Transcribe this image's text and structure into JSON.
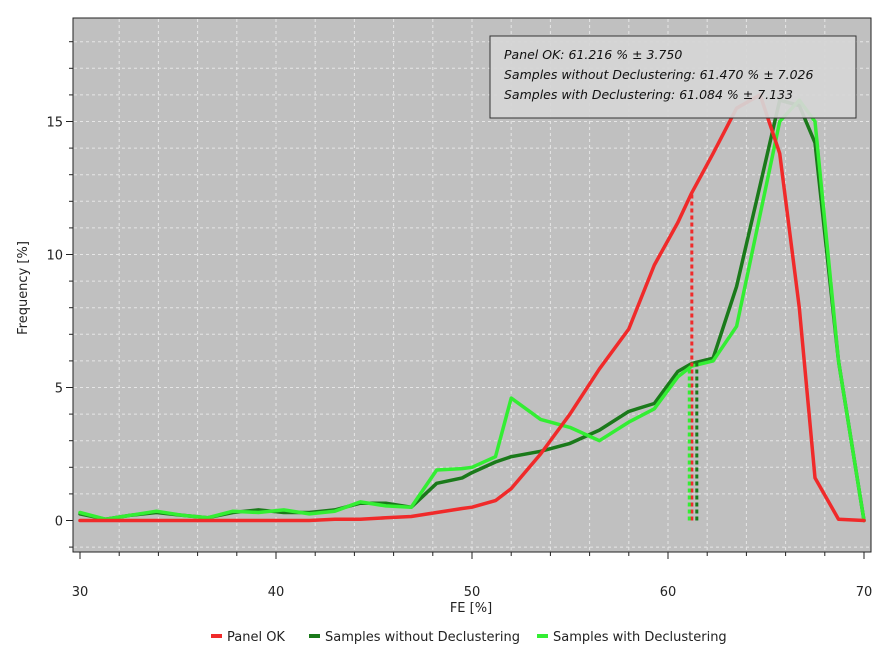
{
  "chart_data": {
    "type": "line",
    "xlabel": "FE [%]",
    "ylabel": "Frequency [%]",
    "xlim": [
      30,
      70
    ],
    "ylim": [
      -1.2,
      18.6
    ],
    "x_ticks": [
      30,
      40,
      50,
      60,
      70
    ],
    "y_ticks": [
      0,
      5,
      10,
      15
    ],
    "grid": true,
    "legend_position": "bottom",
    "colors": {
      "plot_bg": "#c0c0c0",
      "grid": "#e6e6e6",
      "panel_ok": "#f02a2a",
      "without_declustering": "#1a7a1a",
      "with_declustering": "#33ee33"
    },
    "series": [
      {
        "name": "Panel OK",
        "color": "#f02a2a",
        "x": [
          30.0,
          31.3,
          32.6,
          33.9,
          35.2,
          36.5,
          37.8,
          39.1,
          40.4,
          41.7,
          43.0,
          44.3,
          45.6,
          46.9,
          48.2,
          49.5,
          50.0,
          51.2,
          52.0,
          53.5,
          55.0,
          56.5,
          58.0,
          59.3,
          60.5,
          61.2,
          62.3,
          63.5,
          64.7,
          65.7,
          66.7,
          67.5,
          68.7,
          70.0
        ],
        "values": [
          0.0,
          0.0,
          0.0,
          0.0,
          0.0,
          0.0,
          0.0,
          0.0,
          0.0,
          0.0,
          0.05,
          0.05,
          0.1,
          0.15,
          0.3,
          0.45,
          0.5,
          0.75,
          1.2,
          2.5,
          4.0,
          5.7,
          7.2,
          9.6,
          11.2,
          12.3,
          13.8,
          15.5,
          16.0,
          13.8,
          8.0,
          1.6,
          0.05,
          0.0
        ]
      },
      {
        "name": "Samples without Declustering",
        "color": "#1a7a1a",
        "x": [
          30.0,
          31.3,
          32.6,
          33.9,
          35.2,
          36.5,
          37.8,
          39.1,
          40.4,
          41.7,
          43.0,
          44.3,
          45.6,
          46.9,
          48.2,
          49.5,
          50.0,
          51.2,
          52.0,
          53.5,
          55.0,
          56.5,
          58.0,
          59.3,
          60.5,
          61.2,
          62.3,
          63.5,
          64.7,
          65.7,
          66.7,
          67.5,
          68.7,
          70.0
        ],
        "values": [
          0.25,
          0.05,
          0.2,
          0.3,
          0.2,
          0.1,
          0.3,
          0.4,
          0.3,
          0.3,
          0.4,
          0.65,
          0.65,
          0.5,
          1.4,
          1.6,
          1.8,
          2.2,
          2.4,
          2.6,
          2.9,
          3.4,
          4.1,
          4.4,
          5.6,
          5.9,
          6.1,
          8.8,
          12.6,
          15.8,
          15.6,
          14.2,
          6.0,
          0.0
        ]
      },
      {
        "name": "Samples with Declustering",
        "color": "#33ee33",
        "x": [
          30.0,
          31.3,
          32.6,
          33.9,
          35.2,
          36.5,
          37.8,
          39.1,
          40.4,
          41.7,
          43.0,
          44.3,
          45.6,
          46.9,
          48.2,
          49.5,
          50.0,
          51.2,
          52.0,
          53.5,
          55.0,
          56.5,
          58.0,
          59.3,
          60.5,
          61.2,
          62.3,
          63.5,
          64.7,
          65.7,
          66.7,
          67.5,
          68.7,
          70.0
        ],
        "values": [
          0.3,
          0.05,
          0.2,
          0.35,
          0.2,
          0.1,
          0.35,
          0.3,
          0.4,
          0.25,
          0.35,
          0.7,
          0.55,
          0.5,
          1.9,
          1.95,
          2.0,
          2.4,
          4.6,
          3.8,
          3.5,
          3.0,
          3.7,
          4.2,
          5.4,
          5.8,
          6.0,
          7.3,
          11.5,
          15.0,
          15.8,
          15.0,
          6.0,
          0.0
        ]
      }
    ],
    "mean_lines": [
      {
        "series": "Panel OK",
        "x": 61.216,
        "color": "#f02a2a"
      },
      {
        "series": "Samples without Declustering",
        "x": 61.47,
        "color": "#1a7a1a"
      },
      {
        "series": "Samples with Declustering",
        "x": 61.084,
        "color": "#33ee33"
      }
    ],
    "stats_box": [
      "Panel OK: 61.216 % ± 3.750",
      "Samples without Declustering: 61.470 % ± 7.026",
      "Samples with Declustering: 61.084 % ± 7.133"
    ]
  }
}
